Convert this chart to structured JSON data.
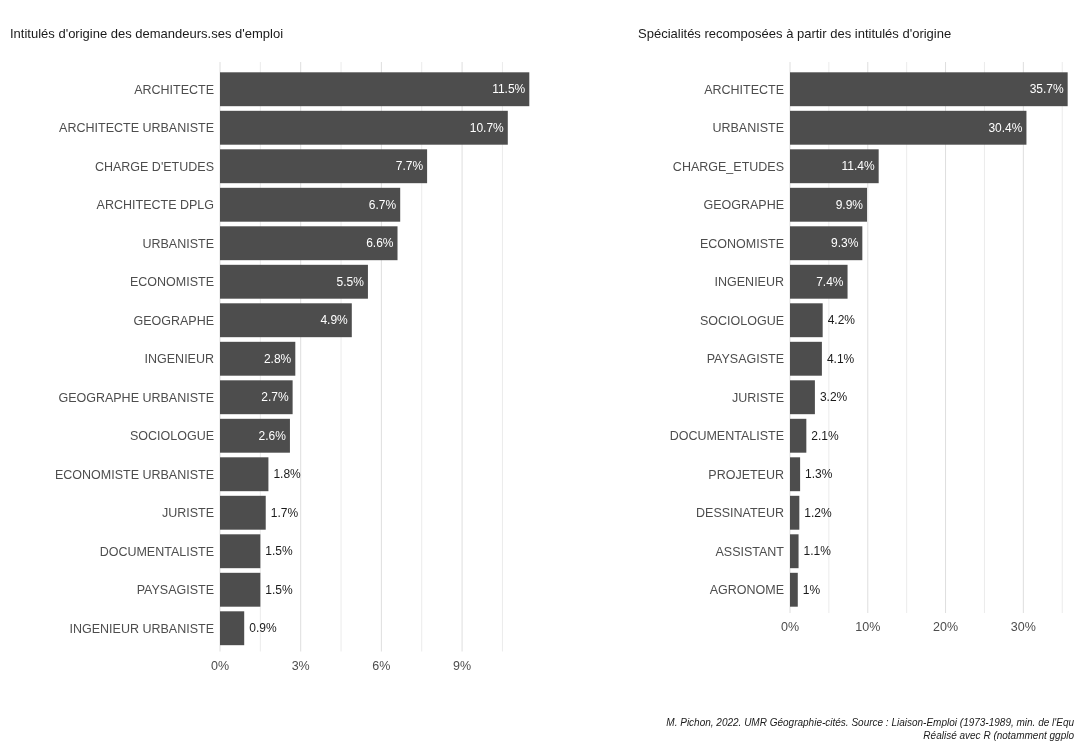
{
  "chart_data": [
    {
      "type": "bar",
      "orientation": "horizontal",
      "title": "Intitulés d'origine des demandeurs.ses d'emploi",
      "categories": [
        "ARCHITECTE",
        "ARCHITECTE URBANISTE",
        "CHARGE D'ETUDES",
        "ARCHITECTE DPLG",
        "URBANISTE",
        "ECONOMISTE",
        "GEOGRAPHE",
        "INGENIEUR",
        "GEOGRAPHE URBANISTE",
        "SOCIOLOGUE",
        "ECONOMISTE URBANISTE",
        "JURISTE",
        "DOCUMENTALISTE",
        "PAYSAGISTE",
        "INGENIEUR URBANISTE"
      ],
      "values": [
        11.5,
        10.7,
        7.7,
        6.7,
        6.6,
        5.5,
        4.9,
        2.8,
        2.7,
        2.6,
        1.8,
        1.7,
        1.5,
        1.5,
        0.9
      ],
      "value_labels": [
        "11.5%",
        "10.7%",
        "7.7%",
        "6.7%",
        "6.6%",
        "5.5%",
        "4.9%",
        "2.8%",
        "2.7%",
        "2.6%",
        "1.8%",
        "1.7%",
        "1.5%",
        "1.5%",
        "0.9%"
      ],
      "color": "#4d4d4d",
      "xlim": [
        0,
        11.6
      ],
      "xticks": [
        {
          "value": 0,
          "label": "0%"
        },
        {
          "value": 1.5,
          "label": null
        },
        {
          "value": 3,
          "label": "3%"
        },
        {
          "value": 4.5,
          "label": null
        },
        {
          "value": 6,
          "label": "6%"
        },
        {
          "value": 7.5,
          "label": null
        },
        {
          "value": 9,
          "label": "9%"
        },
        {
          "value": 10.5,
          "label": null
        }
      ],
      "grid": "x"
    },
    {
      "type": "bar",
      "orientation": "horizontal",
      "title": "Spécialités recomposées à partir des intitulés d'origine",
      "categories": [
        "ARCHITECTE",
        "URBANISTE",
        "CHARGE_ETUDES",
        "GEOGRAPHE",
        "ECONOMISTE",
        "INGENIEUR",
        "SOCIOLOGUE",
        "PAYSAGISTE",
        "JURISTE",
        "DOCUMENTALISTE",
        "PROJETEUR",
        "DESSINATEUR",
        "ASSISTANT",
        "AGRONOME"
      ],
      "values": [
        35.7,
        30.4,
        11.4,
        9.9,
        9.3,
        7.4,
        4.2,
        4.1,
        3.2,
        2.1,
        1.3,
        1.2,
        1.1,
        1
      ],
      "value_labels": [
        "35.7%",
        "30.4%",
        "11.4%",
        "9.9%",
        "9.3%",
        "7.4%",
        "4.2%",
        "4.1%",
        "3.2%",
        "2.1%",
        "1.3%",
        "1.2%",
        "1.1%",
        "1%"
      ],
      "color": "#4d4d4d",
      "xlim": [
        0,
        36
      ],
      "xticks": [
        {
          "value": 0,
          "label": "0%"
        },
        {
          "value": 5,
          "label": null
        },
        {
          "value": 10,
          "label": "10%"
        },
        {
          "value": 15,
          "label": null
        },
        {
          "value": 20,
          "label": "20%"
        },
        {
          "value": 25,
          "label": null
        },
        {
          "value": 30,
          "label": "30%"
        },
        {
          "value": 35,
          "label": null
        }
      ],
      "grid": "x",
      "annotations": [
        "M. Pichon, 2022. UMR Géographie-cités. Source : Liaison-Emploi (1973-1989, min. de l'Equ",
        "Réalisé avec R (notamment ggplo"
      ]
    }
  ]
}
